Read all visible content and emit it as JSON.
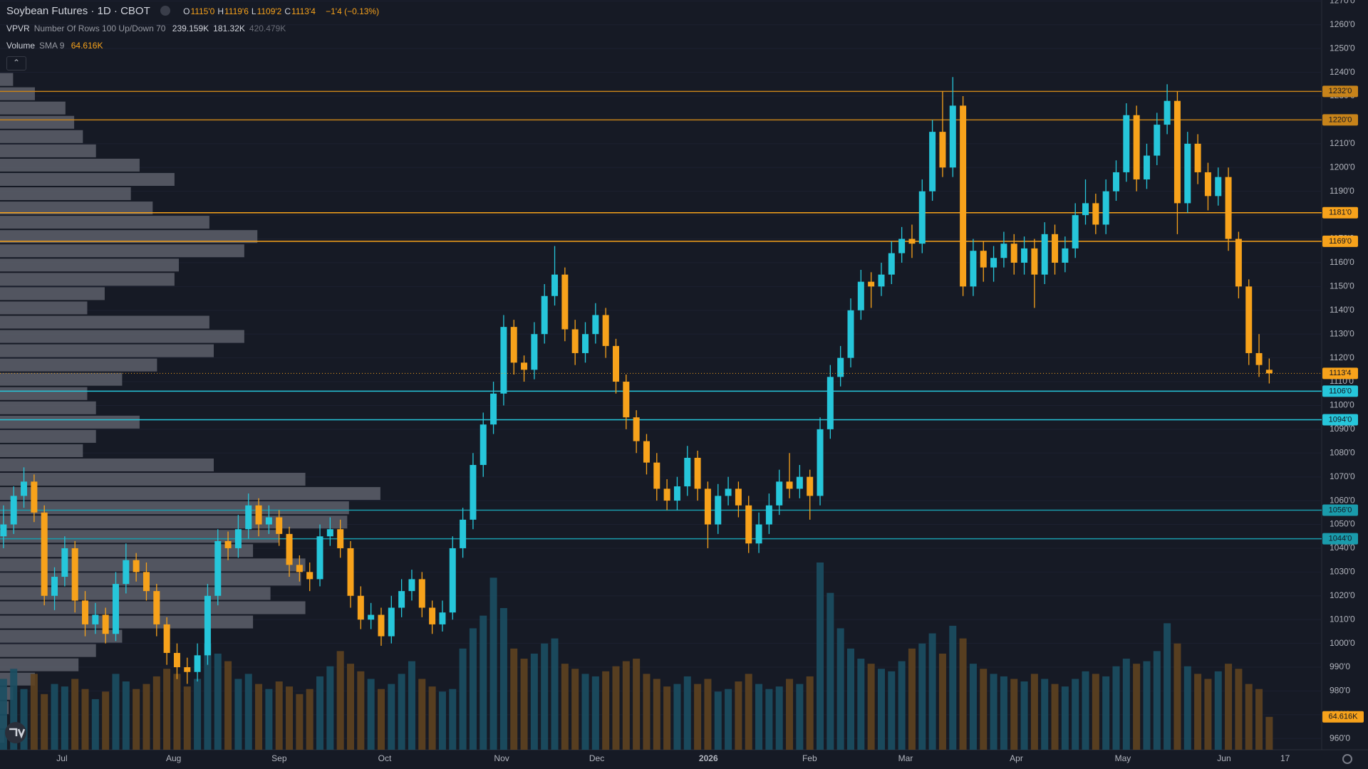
{
  "header": {
    "symbol": "Soybean Futures · 1D · CBOT",
    "ohlc": [
      {
        "key": "O",
        "value": "1115'0"
      },
      {
        "key": "H",
        "value": "1119'6"
      },
      {
        "key": "L",
        "value": "1109'2"
      },
      {
        "key": "C",
        "value": "1113'4"
      }
    ],
    "change": "−1'4 (−0.13%)"
  },
  "vpvr_legend": {
    "name": "VPVR",
    "settings": "Number Of Rows 100 Up/Down 70",
    "up": "239.159K",
    "down": "181.32K",
    "total": "420.479K"
  },
  "volume_legend": {
    "name": "Volume",
    "settings": "SMA 9",
    "value": "64.616K"
  },
  "chart_data": {
    "type": "candlestick",
    "up_color": "#26c6da",
    "down_color": "#f7a21b",
    "ylim": [
      955.3,
      1270.4
    ],
    "yticks": [
      {
        "value": 960,
        "label": "960'0"
      },
      {
        "value": 970,
        "label": "970'0"
      },
      {
        "value": 980,
        "label": "980'0"
      },
      {
        "value": 990,
        "label": "990'0"
      },
      {
        "value": 1000,
        "label": "1000'0"
      },
      {
        "value": 1010,
        "label": "1010'0"
      },
      {
        "value": 1020,
        "label": "1020'0"
      },
      {
        "value": 1030,
        "label": "1030'0"
      },
      {
        "value": 1040,
        "label": "1040'0"
      },
      {
        "value": 1050,
        "label": "1050'0"
      },
      {
        "value": 1060,
        "label": "1060'0"
      },
      {
        "value": 1070,
        "label": "1070'0"
      },
      {
        "value": 1080,
        "label": "1080'0"
      },
      {
        "value": 1090,
        "label": "1090'0"
      },
      {
        "value": 1100,
        "label": "1100'0"
      },
      {
        "value": 1110,
        "label": "1110'0"
      },
      {
        "value": 1120,
        "label": "1120'0"
      },
      {
        "value": 1130,
        "label": "1130'0"
      },
      {
        "value": 1140,
        "label": "1140'0"
      },
      {
        "value": 1150,
        "label": "1150'0"
      },
      {
        "value": 1160,
        "label": "1160'0"
      },
      {
        "value": 1170,
        "label": "1170'0"
      },
      {
        "value": 1180,
        "label": "1180'0"
      },
      {
        "value": 1190,
        "label": "1190'0"
      },
      {
        "value": 1200,
        "label": "1200'0"
      },
      {
        "value": 1210,
        "label": "1210'0"
      },
      {
        "value": 1220,
        "label": "1220'0"
      },
      {
        "value": 1230,
        "label": "1230'0"
      },
      {
        "value": 1240,
        "label": "1240'0"
      },
      {
        "value": 1250,
        "label": "1250'0"
      },
      {
        "value": 1260,
        "label": "1260'0"
      },
      {
        "value": 1270,
        "label": "1270'0"
      }
    ],
    "time_labels": [
      "Jul",
      "Aug",
      "Sep",
      "Oct",
      "Nov",
      "Dec",
      "2026",
      "Feb",
      "Mar",
      "Apr",
      "May",
      "Jun",
      "17"
    ],
    "candles": [
      [
        1045,
        1058,
        1040,
        1050
      ],
      [
        1050,
        1066,
        1046,
        1062
      ],
      [
        1062,
        1074,
        1057,
        1068
      ],
      [
        1068,
        1071,
        1051,
        1055
      ],
      [
        1055,
        1058,
        1016,
        1020
      ],
      [
        1020,
        1032,
        1014,
        1028
      ],
      [
        1028,
        1045,
        1024,
        1040
      ],
      [
        1040,
        1043,
        1013,
        1018
      ],
      [
        1018,
        1022,
        1003,
        1008
      ],
      [
        1008,
        1017,
        1004,
        1012
      ],
      [
        1012,
        1015,
        1000,
        1004
      ],
      [
        1004,
        1030,
        1001,
        1025
      ],
      [
        1025,
        1042,
        1021,
        1035
      ],
      [
        1035,
        1038,
        1026,
        1030
      ],
      [
        1030,
        1034,
        1018,
        1022
      ],
      [
        1022,
        1025,
        1003,
        1008
      ],
      [
        1008,
        1011,
        991,
        996
      ],
      [
        996,
        1000,
        985,
        990
      ],
      [
        990,
        994,
        983,
        988
      ],
      [
        988,
        1000,
        984,
        995
      ],
      [
        995,
        1025,
        991,
        1020
      ],
      [
        1020,
        1048,
        1016,
        1043
      ],
      [
        1043,
        1047,
        1035,
        1040
      ],
      [
        1040,
        1054,
        1036,
        1048
      ],
      [
        1048,
        1063,
        1044,
        1058
      ],
      [
        1058,
        1061,
        1045,
        1050
      ],
      [
        1050,
        1058,
        1046,
        1053
      ],
      [
        1053,
        1056,
        1041,
        1046
      ],
      [
        1046,
        1049,
        1028,
        1033
      ],
      [
        1033,
        1037,
        1026,
        1030
      ],
      [
        1030,
        1034,
        1022,
        1027
      ],
      [
        1027,
        1050,
        1024,
        1045
      ],
      [
        1045,
        1053,
        1041,
        1048
      ],
      [
        1048,
        1052,
        1036,
        1040
      ],
      [
        1040,
        1043,
        1015,
        1020
      ],
      [
        1020,
        1024,
        1006,
        1010
      ],
      [
        1010,
        1017,
        1006,
        1012
      ],
      [
        1012,
        1015,
        999,
        1003
      ],
      [
        1003,
        1020,
        1000,
        1015
      ],
      [
        1015,
        1027,
        1011,
        1022
      ],
      [
        1022,
        1031,
        1018,
        1027
      ],
      [
        1027,
        1030,
        1011,
        1015
      ],
      [
        1015,
        1018,
        1004,
        1008
      ],
      [
        1008,
        1018,
        1005,
        1013
      ],
      [
        1013,
        1045,
        1010,
        1040
      ],
      [
        1040,
        1057,
        1036,
        1052
      ],
      [
        1052,
        1080,
        1048,
        1075
      ],
      [
        1075,
        1097,
        1070,
        1092
      ],
      [
        1092,
        1110,
        1088,
        1105
      ],
      [
        1105,
        1138,
        1100,
        1133
      ],
      [
        1133,
        1136,
        1113,
        1118
      ],
      [
        1118,
        1121,
        1110,
        1115
      ],
      [
        1115,
        1135,
        1111,
        1130
      ],
      [
        1130,
        1151,
        1126,
        1146
      ],
      [
        1146,
        1167,
        1142,
        1155
      ],
      [
        1155,
        1158,
        1127,
        1132
      ],
      [
        1132,
        1136,
        1117,
        1122
      ],
      [
        1122,
        1135,
        1118,
        1130
      ],
      [
        1130,
        1143,
        1126,
        1138
      ],
      [
        1138,
        1141,
        1120,
        1125
      ],
      [
        1125,
        1128,
        1105,
        1110
      ],
      [
        1110,
        1113,
        1090,
        1095
      ],
      [
        1095,
        1098,
        1080,
        1085
      ],
      [
        1085,
        1088,
        1071,
        1076
      ],
      [
        1076,
        1080,
        1060,
        1065
      ],
      [
        1065,
        1069,
        1056,
        1060
      ],
      [
        1060,
        1070,
        1056,
        1066
      ],
      [
        1066,
        1083,
        1062,
        1078
      ],
      [
        1078,
        1081,
        1060,
        1065
      ],
      [
        1065,
        1068,
        1040,
        1050
      ],
      [
        1050,
        1067,
        1046,
        1062
      ],
      [
        1062,
        1070,
        1058,
        1065
      ],
      [
        1065,
        1068,
        1053,
        1058
      ],
      [
        1058,
        1062,
        1038,
        1042
      ],
      [
        1042,
        1055,
        1038,
        1050
      ],
      [
        1050,
        1063,
        1046,
        1058
      ],
      [
        1058,
        1073,
        1054,
        1068
      ],
      [
        1068,
        1080,
        1061,
        1065
      ],
      [
        1065,
        1075,
        1061,
        1070
      ],
      [
        1070,
        1073,
        1052,
        1062
      ],
      [
        1062,
        1095,
        1058,
        1090
      ],
      [
        1090,
        1117,
        1086,
        1112
      ],
      [
        1112,
        1125,
        1108,
        1120
      ],
      [
        1120,
        1145,
        1116,
        1140
      ],
      [
        1140,
        1157,
        1136,
        1152
      ],
      [
        1152,
        1156,
        1141,
        1150
      ],
      [
        1150,
        1160,
        1146,
        1155
      ],
      [
        1155,
        1169,
        1151,
        1164
      ],
      [
        1164,
        1175,
        1160,
        1170
      ],
      [
        1170,
        1176,
        1162,
        1168
      ],
      [
        1168,
        1195,
        1164,
        1190
      ],
      [
        1190,
        1220,
        1186,
        1215
      ],
      [
        1215,
        1232,
        1196,
        1200
      ],
      [
        1200,
        1238,
        1196,
        1226
      ],
      [
        1226,
        1230,
        1146,
        1150
      ],
      [
        1150,
        1170,
        1146,
        1165
      ],
      [
        1165,
        1169,
        1152,
        1158
      ],
      [
        1158,
        1167,
        1152,
        1162
      ],
      [
        1162,
        1173,
        1158,
        1168
      ],
      [
        1168,
        1172,
        1155,
        1160
      ],
      [
        1160,
        1171,
        1155,
        1166
      ],
      [
        1166,
        1170,
        1141,
        1155
      ],
      [
        1155,
        1177,
        1151,
        1172
      ],
      [
        1172,
        1176,
        1155,
        1160
      ],
      [
        1160,
        1171,
        1156,
        1166
      ],
      [
        1166,
        1185,
        1162,
        1180
      ],
      [
        1180,
        1195,
        1176,
        1185
      ],
      [
        1185,
        1189,
        1172,
        1176
      ],
      [
        1176,
        1195,
        1172,
        1190
      ],
      [
        1190,
        1203,
        1186,
        1198
      ],
      [
        1198,
        1227,
        1194,
        1222
      ],
      [
        1222,
        1226,
        1190,
        1195
      ],
      [
        1195,
        1210,
        1191,
        1205
      ],
      [
        1205,
        1223,
        1201,
        1218
      ],
      [
        1218,
        1235,
        1214,
        1228
      ],
      [
        1228,
        1232,
        1172,
        1185
      ],
      [
        1185,
        1215,
        1181,
        1210
      ],
      [
        1210,
        1214,
        1193,
        1198
      ],
      [
        1198,
        1202,
        1182,
        1188
      ],
      [
        1188,
        1200,
        1184,
        1196
      ],
      [
        1196,
        1200,
        1165,
        1170
      ],
      [
        1170,
        1173,
        1145,
        1150
      ],
      [
        1150,
        1153,
        1117,
        1122
      ],
      [
        1122,
        1130,
        1112,
        1117
      ],
      [
        1115,
        1119.75,
        1109.25,
        1113.5
      ]
    ],
    "volume": [
      140,
      160,
      120,
      150,
      110,
      130,
      125,
      140,
      120,
      100,
      115,
      150,
      135,
      120,
      130,
      145,
      160,
      150,
      125,
      140,
      210,
      190,
      175,
      140,
      150,
      130,
      120,
      135,
      125,
      110,
      120,
      145,
      165,
      195,
      170,
      155,
      140,
      120,
      130,
      150,
      175,
      140,
      125,
      115,
      120,
      200,
      240,
      265,
      340,
      280,
      200,
      180,
      190,
      210,
      220,
      170,
      160,
      150,
      145,
      155,
      165,
      175,
      180,
      150,
      140,
      125,
      130,
      145,
      130,
      140,
      115,
      120,
      135,
      150,
      130,
      120,
      125,
      140,
      130,
      145,
      370,
      310,
      240,
      200,
      180,
      170,
      160,
      155,
      175,
      200,
      210,
      230,
      190,
      245,
      220,
      170,
      160,
      150,
      145,
      140,
      135,
      150,
      140,
      130,
      125,
      140,
      155,
      150,
      145,
      165,
      180,
      170,
      175,
      195,
      250,
      210,
      165,
      150,
      140,
      155,
      170,
      160,
      130,
      120,
      65
    ],
    "volume_label": "64.616K",
    "profile": {
      "prices": [
        958,
        964,
        970,
        976,
        982,
        988,
        994,
        1000,
        1006,
        1012,
        1018,
        1024,
        1030,
        1036,
        1042,
        1048,
        1054,
        1060,
        1066,
        1072,
        1078,
        1084,
        1090,
        1096,
        1102,
        1108,
        1114,
        1120,
        1126,
        1132,
        1138,
        1144,
        1150,
        1156,
        1162,
        1168,
        1174,
        1180,
        1186,
        1192,
        1198,
        1204,
        1210,
        1216,
        1222,
        1228,
        1234
      ],
      "volumes": [
        5,
        8,
        10,
        15,
        40,
        90,
        110,
        140,
        290,
        350,
        310,
        345,
        350,
        290,
        320,
        398,
        400,
        436,
        350,
        245,
        95,
        110,
        160,
        110,
        100,
        140,
        180,
        245,
        280,
        240,
        100,
        120,
        200,
        205,
        280,
        295,
        240,
        175,
        150,
        200,
        160,
        110,
        95,
        85,
        75,
        40,
        15
      ]
    },
    "levels": [
      {
        "value": 1232,
        "label": "1232'0",
        "color": "#c7831a"
      },
      {
        "value": 1220,
        "label": "1220'0",
        "color": "#c7831a"
      },
      {
        "value": 1181,
        "label": "1181'0",
        "color": "#f7a21b"
      },
      {
        "value": 1169,
        "label": "1169'0",
        "color": "#f7a21b"
      },
      {
        "value": 1106,
        "label": "1106'0",
        "color": "#26c6da"
      },
      {
        "value": 1094,
        "label": "1094'0",
        "color": "#26c6da"
      },
      {
        "value": 1056,
        "label": "1056'0",
        "color": "#1a9bab"
      },
      {
        "value": 1044,
        "label": "1044'0",
        "color": "#1a9bab"
      }
    ],
    "last_price": {
      "value": 1113.5,
      "label": "1113'4"
    }
  }
}
